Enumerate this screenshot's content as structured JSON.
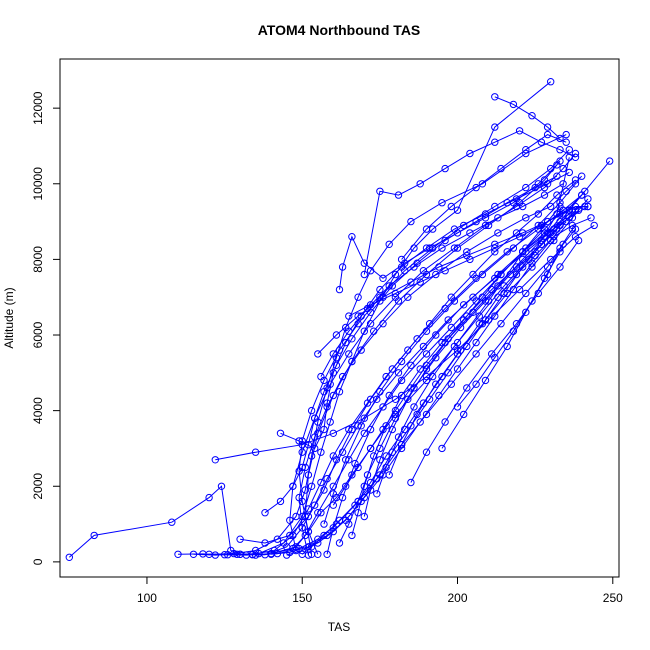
{
  "chart_data": {
    "type": "scatter",
    "title": "ATOM4 Northbound TAS",
    "xlabel": "TAS",
    "ylabel": "Altitude (m)",
    "xlim": [
      72,
      252
    ],
    "ylim": [
      -400,
      13300
    ],
    "xticks": [
      100,
      150,
      200,
      250
    ],
    "yticks": [
      0,
      2000,
      4000,
      6000,
      8000,
      10000,
      12000
    ],
    "series_color": "#0000ff",
    "marker": "open-circle",
    "connect_points": true,
    "series": [
      {
        "x": [
          75,
          83,
          108,
          120,
          124,
          127,
          130,
          134,
          140,
          148,
          152,
          156,
          161,
          166,
          172,
          180,
          190,
          200,
          210,
          222,
          233
        ],
        "y": [
          120,
          700,
          1050,
          1700,
          2000,
          300,
          200,
          190,
          220,
          400,
          800,
          1300,
          1700,
          2300,
          3000,
          3900,
          4800,
          5800,
          6900,
          8300,
          9400
        ]
      },
      {
        "x": [
          110,
          118,
          125,
          132,
          140,
          147,
          151,
          155,
          160,
          165,
          170,
          176,
          182,
          190,
          198,
          206,
          214,
          221,
          228,
          233
        ],
        "y": [
          200,
          210,
          190,
          180,
          210,
          350,
          700,
          1300,
          2000,
          2700,
          3400,
          4100,
          4800,
          5500,
          6200,
          6900,
          7600,
          8200,
          8700,
          9000
        ]
      },
      {
        "x": [
          115,
          122,
          129,
          136,
          144,
          150,
          153,
          156,
          159,
          162,
          166,
          170,
          175,
          180,
          186,
          192,
          200,
          212,
          230
        ],
        "y": [
          200,
          180,
          200,
          220,
          500,
          1200,
          2000,
          2900,
          3700,
          4500,
          5300,
          6100,
          6900,
          7600,
          8300,
          8800,
          9300,
          11500,
          12700
        ]
      },
      {
        "x": [
          120,
          128,
          135,
          142,
          148,
          151,
          153,
          155,
          158,
          161,
          164,
          168,
          172,
          178,
          185,
          195,
          208,
          222,
          235
        ],
        "y": [
          200,
          220,
          300,
          600,
          1200,
          1900,
          2800,
          3700,
          4600,
          5400,
          6200,
          7000,
          7700,
          8400,
          9000,
          9500,
          10000,
          10800,
          11300
        ]
      },
      {
        "x": [
          126,
          134,
          141,
          147,
          152,
          156,
          160,
          165,
          171,
          177,
          184,
          191,
          198,
          205,
          212,
          219,
          226,
          232,
          238
        ],
        "y": [
          190,
          200,
          300,
          700,
          1400,
          2100,
          2800,
          3500,
          4200,
          4900,
          5600,
          6300,
          7000,
          7600,
          8200,
          8700,
          9200,
          9700,
          10100
        ]
      },
      {
        "x": [
          130,
          138,
          145,
          150,
          154,
          158,
          163,
          168,
          174,
          181,
          189,
          197,
          205,
          213,
          221,
          229,
          236,
          242
        ],
        "y": [
          200,
          190,
          400,
          900,
          1500,
          2200,
          2900,
          3600,
          4300,
          5000,
          5700,
          6400,
          7000,
          7600,
          8200,
          8700,
          9100,
          9400
        ]
      },
      {
        "x": [
          135,
          142,
          149,
          155,
          161,
          167,
          172,
          177,
          183,
          189,
          195,
          201,
          207,
          213,
          219,
          225,
          231,
          237,
          243
        ],
        "y": [
          180,
          220,
          350,
          600,
          1000,
          1500,
          2100,
          2800,
          3500,
          4200,
          4900,
          5600,
          6300,
          7000,
          7600,
          8100,
          8600,
          8900,
          9100
        ]
      },
      {
        "x": [
          140,
          146,
          152,
          158,
          164,
          169,
          174,
          179,
          185,
          191,
          197,
          203,
          209,
          215,
          221,
          227,
          232,
          236
        ],
        "y": [
          200,
          250,
          400,
          700,
          1100,
          1600,
          2200,
          2900,
          3600,
          4300,
          5000,
          5700,
          6400,
          7100,
          7800,
          8500,
          9200,
          10700
        ]
      },
      {
        "x": [
          145,
          150,
          155,
          160,
          165,
          170,
          176,
          182,
          188,
          194,
          200,
          206,
          212,
          218,
          224,
          230,
          235
        ],
        "y": [
          180,
          300,
          500,
          800,
          1200,
          1700,
          2300,
          3000,
          3700,
          4400,
          5100,
          5800,
          6500,
          7200,
          7900,
          8500,
          9000
        ]
      },
      {
        "x": [
          150,
          153,
          157,
          162,
          168,
          175,
          182,
          190,
          198,
          206,
          214,
          222,
          229,
          234,
          238
        ],
        "y": [
          200,
          400,
          700,
          1100,
          1600,
          2300,
          3100,
          3900,
          4700,
          5500,
          6300,
          7100,
          7800,
          8400,
          8800
        ]
      },
      {
        "x": [
          152,
          150,
          149,
          151,
          154,
          158,
          163,
          169,
          176,
          184,
          193,
          203,
          213,
          222,
          230,
          235,
          240
        ],
        "y": [
          180,
          900,
          1700,
          2500,
          3300,
          4100,
          4900,
          5600,
          6300,
          7000,
          7600,
          8200,
          8700,
          9100,
          9400,
          9800,
          10200
        ]
      },
      {
        "x": [
          155,
          152,
          150,
          149,
          150,
          153,
          157,
          162,
          168,
          175,
          183,
          192,
          202,
          212,
          222,
          230,
          236
        ],
        "y": [
          200,
          800,
          1600,
          2400,
          3200,
          4000,
          4800,
          5600,
          6300,
          7000,
          7700,
          8300,
          8900,
          9400,
          9900,
          10400,
          10900
        ]
      },
      {
        "x": [
          148,
          146,
          147,
          150,
          154,
          159,
          165,
          172,
          180,
          189,
          199,
          209,
          219,
          228,
          234,
          238
        ],
        "y": [
          300,
          1100,
          2000,
          2900,
          3800,
          4700,
          5500,
          6300,
          7000,
          7700,
          8300,
          8900,
          9400,
          9900,
          10400,
          10800
        ]
      },
      {
        "x": [
          153,
          151,
          152,
          155,
          160,
          166,
          173,
          181,
          190,
          200,
          210,
          220,
          228,
          233
        ],
        "y": [
          200,
          1200,
          2300,
          3400,
          4400,
          5300,
          6100,
          6900,
          7600,
          8300,
          8900,
          9500,
          10100,
          10600
        ]
      },
      {
        "x": [
          143,
          149,
          154,
          157,
          158,
          160,
          164,
          169,
          175,
          182,
          190,
          199,
          209,
          219,
          229,
          236
        ],
        "y": [
          3400,
          3200,
          3000,
          3500,
          4200,
          5000,
          5800,
          6500,
          7200,
          7800,
          8300,
          8800,
          9200,
          9600,
          10000,
          10300
        ]
      },
      {
        "x": [
          122,
          135,
          150,
          160,
          170,
          180,
          190,
          200,
          210,
          220,
          230,
          238,
          244
        ],
        "y": [
          2700,
          2900,
          3100,
          3400,
          3800,
          4300,
          4900,
          5600,
          6400,
          7200,
          8000,
          8600,
          8900
        ]
      },
      {
        "x": [
          158,
          160,
          163,
          167,
          172,
          178,
          185,
          193,
          202,
          212,
          222,
          231,
          237
        ],
        "y": [
          200,
          900,
          1700,
          2600,
          3500,
          4400,
          5200,
          6000,
          6800,
          7500,
          8200,
          8800,
          9300
        ]
      },
      {
        "x": [
          162,
          165,
          168,
          171,
          175,
          180,
          186,
          193,
          201,
          209,
          217,
          225,
          232,
          238
        ],
        "y": [
          500,
          1000,
          1600,
          2300,
          3000,
          3800,
          4600,
          5400,
          6200,
          6900,
          7600,
          8200,
          8800,
          9300
        ]
      },
      {
        "x": [
          166,
          168,
          170,
          173,
          177,
          182,
          188,
          195,
          203,
          211,
          219,
          227,
          233,
          239
        ],
        "y": [
          700,
          1300,
          2000,
          2800,
          3600,
          4400,
          5100,
          5800,
          6500,
          7200,
          7800,
          8400,
          8900,
          9300
        ]
      },
      {
        "x": [
          170,
          172,
          175,
          179,
          184,
          190,
          197,
          205,
          213,
          221,
          228,
          234,
          240,
          249
        ],
        "y": [
          1200,
          1900,
          2700,
          3500,
          4300,
          5100,
          5900,
          6600,
          7300,
          8000,
          8600,
          9200,
          9700,
          10600
        ]
      },
      {
        "x": [
          174,
          177,
          181,
          186,
          192,
          199,
          207,
          215,
          223,
          230,
          236,
          241
        ],
        "y": [
          1800,
          2500,
          3300,
          4100,
          4900,
          5700,
          6500,
          7300,
          8000,
          8700,
          9300,
          9800
        ]
      },
      {
        "x": [
          178,
          182,
          187,
          193,
          200,
          208,
          216,
          224,
          231,
          237,
          242
        ],
        "y": [
          2300,
          3100,
          3900,
          4700,
          5500,
          6300,
          7100,
          7800,
          8500,
          9100,
          9600
        ]
      },
      {
        "x": [
          185,
          190,
          196,
          203,
          211,
          219,
          226,
          233,
          239
        ],
        "y": [
          2100,
          2900,
          3700,
          4600,
          5500,
          6300,
          7100,
          7800,
          8500
        ]
      },
      {
        "x": [
          160,
          164,
          168,
          172,
          176,
          180,
          185,
          190,
          196,
          202,
          208,
          214,
          221,
          228,
          234,
          240
        ],
        "y": [
          1500,
          2000,
          2500,
          3000,
          3500,
          4000,
          4600,
          5200,
          5800,
          6400,
          7000,
          7600,
          8200,
          8800,
          9300,
          9700
        ]
      },
      {
        "x": [
          157,
          160,
          164,
          169,
          175,
          182,
          190,
          199,
          208,
          218,
          226,
          233,
          238
        ],
        "y": [
          1000,
          1800,
          2700,
          3600,
          4500,
          5300,
          6100,
          6900,
          7600,
          8300,
          8900,
          9500,
          10000
        ]
      },
      {
        "x": [
          162,
          163,
          166,
          170,
          176,
          183,
          191,
          200,
          209,
          218,
          226,
          232
        ],
        "y": [
          7200,
          7800,
          8600,
          7900,
          7500,
          7900,
          8300,
          8700,
          9100,
          9500,
          10000,
          10500
        ]
      },
      {
        "x": [
          170,
          175,
          181,
          188,
          196,
          204,
          212,
          220,
          227,
          233,
          238
        ],
        "y": [
          7600,
          9800,
          9700,
          10000,
          10400,
          10800,
          11100,
          11400,
          11100,
          10900,
          10700
        ]
      },
      {
        "x": [
          182,
          190,
          198,
          206,
          214,
          222,
          229,
          235
        ],
        "y": [
          8000,
          8800,
          9400,
          9900,
          10400,
          10900,
          11300,
          11100
        ]
      },
      {
        "x": [
          212,
          218,
          224,
          229,
          233
        ],
        "y": [
          12300,
          12100,
          11800,
          11500,
          11200
        ]
      },
      {
        "x": [
          165,
          172,
          180,
          188,
          196,
          204,
          212,
          220,
          227,
          233,
          238,
          242
        ],
        "y": [
          6500,
          6800,
          7100,
          7400,
          7700,
          8000,
          8300,
          8600,
          8900,
          9200,
          9400,
          9400
        ]
      },
      {
        "x": [
          155,
          161,
          168,
          176,
          185,
          194,
          203,
          212,
          221,
          229,
          236,
          241
        ],
        "y": [
          5500,
          6000,
          6500,
          7000,
          7400,
          7800,
          8100,
          8400,
          8700,
          9000,
          9300,
          9400
        ]
      },
      {
        "x": [
          156,
          160,
          165,
          171,
          178,
          186,
          195,
          204,
          213,
          221,
          228,
          234
        ],
        "y": [
          4900,
          5500,
          6100,
          6700,
          7300,
          7800,
          8300,
          8700,
          9100,
          9400,
          9700,
          10000
        ]
      },
      {
        "x": [
          130,
          138,
          146,
          152,
          157,
          161,
          166,
          172,
          179,
          187,
          196,
          206,
          216,
          226,
          234
        ],
        "y": [
          600,
          500,
          700,
          1200,
          1900,
          2700,
          3500,
          4300,
          5100,
          5900,
          6700,
          7500,
          8200,
          8800,
          9300
        ]
      },
      {
        "x": [
          138,
          143,
          147,
          150,
          152,
          154,
          157,
          161,
          166,
          172,
          179,
          187,
          196,
          206,
          216,
          225,
          232
        ],
        "y": [
          1300,
          1600,
          2000,
          2500,
          3100,
          3800,
          4500,
          5200,
          5900,
          6600,
          7300,
          7900,
          8500,
          9000,
          9500,
          9900,
          10200
        ]
      },
      {
        "x": [
          200,
          206,
          212,
          218,
          224,
          229,
          233,
          237
        ],
        "y": [
          4100,
          4700,
          5400,
          6100,
          6900,
          7600,
          8300,
          8800
        ]
      },
      {
        "x": [
          195,
          202,
          209,
          216,
          222,
          228,
          233
        ],
        "y": [
          3000,
          3900,
          4800,
          5700,
          6600,
          7500,
          8200
        ]
      }
    ]
  }
}
